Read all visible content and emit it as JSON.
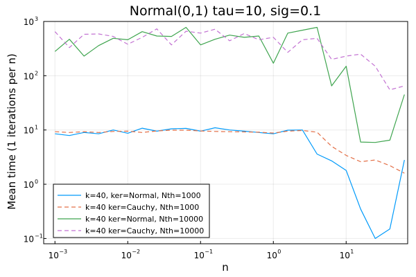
{
  "chart_data": {
    "type": "line",
    "title": "Normal(0,1) tau=10, sig=0.1",
    "xlabel": "n",
    "ylabel": "Mean time (1 iterations per n)",
    "xscale": "log",
    "yscale": "log",
    "xlim": [
      0.0007,
      70
    ],
    "ylim": [
      0.08,
      1000
    ],
    "grid": true,
    "legend_position": "bottom-left",
    "x_ticks": [
      {
        "value": 0.001,
        "base": "10",
        "exp": "−3"
      },
      {
        "value": 0.01,
        "base": "10",
        "exp": "−2"
      },
      {
        "value": 0.1,
        "base": "10",
        "exp": "−1"
      },
      {
        "value": 1,
        "base": "10",
        "exp": "0"
      },
      {
        "value": 10,
        "base": "10",
        "exp": "1"
      }
    ],
    "y_ticks": [
      {
        "value": 0.1,
        "base": "10",
        "exp": "−1"
      },
      {
        "value": 1,
        "base": "10",
        "exp": "0"
      },
      {
        "value": 10,
        "base": "10",
        "exp": "1"
      },
      {
        "value": 100,
        "base": "10",
        "exp": "2"
      },
      {
        "value": 1000,
        "base": "10",
        "exp": "3"
      }
    ],
    "x": [
      0.001,
      0.00158,
      0.00251,
      0.00398,
      0.00631,
      0.01,
      0.0158,
      0.0251,
      0.0398,
      0.0631,
      0.1,
      0.158,
      0.251,
      0.398,
      0.631,
      1,
      1.58,
      2.51,
      3.98,
      6.31,
      10,
      15.8,
      25.1,
      39.8,
      63.1
    ],
    "series": [
      {
        "name": "k=40, ker=Normal, Nth=1000",
        "color": "#009AFA",
        "dash": "solid",
        "values": [
          8.5,
          7.9,
          9.0,
          8.5,
          10.0,
          8.7,
          10.8,
          9.5,
          10.5,
          10.7,
          9.5,
          11.0,
          10.0,
          9.5,
          9.0,
          8.5,
          9.9,
          10.0,
          3.6,
          2.7,
          1.8,
          0.35,
          0.1,
          0.15,
          2.8
        ]
      },
      {
        "name": "k=40 ker=Cauchy, Nth=1000",
        "color": "#E36F47",
        "dash": "dashed",
        "values": [
          9.3,
          9.0,
          9.3,
          9.0,
          9.4,
          9.5,
          9.0,
          9.6,
          9.9,
          9.9,
          9.6,
          9.4,
          9.3,
          9.2,
          9.1,
          8.8,
          9.5,
          9.8,
          9.1,
          5.0,
          3.4,
          2.6,
          2.8,
          2.2,
          1.6
        ]
      },
      {
        "name": "k=40 ker=Normal, Nth=10000",
        "color": "#3EA44E",
        "dash": "solid",
        "values": [
          280,
          470,
          230,
          360,
          490,
          460,
          650,
          540,
          530,
          780,
          370,
          470,
          560,
          510,
          540,
          170,
          610,
          690,
          780,
          65,
          150,
          6.0,
          5.9,
          6.5,
          45
        ]
      },
      {
        "name": "k=40 ker=Cauchy, Nth=10000",
        "color": "#C271D2",
        "dash": "dashed",
        "values": [
          650,
          330,
          580,
          590,
          530,
          380,
          510,
          730,
          370,
          660,
          610,
          720,
          440,
          600,
          460,
          510,
          270,
          460,
          490,
          200,
          230,
          250,
          150,
          55,
          65
        ]
      }
    ]
  }
}
